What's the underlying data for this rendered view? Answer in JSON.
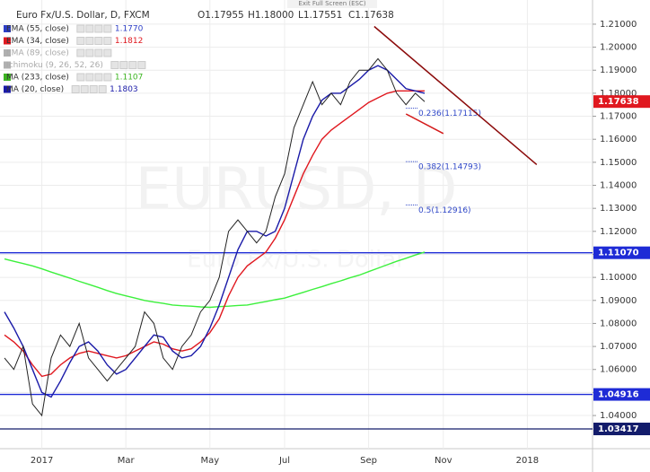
{
  "chart_data": {
    "type": "line",
    "title": "Euro Fx/U.S. Dollar, D, FXCM",
    "ohlc": [
      "O1.17955",
      "H1.18000",
      "L1.17551",
      "C1.17638"
    ],
    "exit_hint": "Exit Full Screen (ESC)",
    "watermark": "EURUSD, D",
    "watermark_sub": "Euro Fx/U.S. Dollar",
    "indicators": [
      {
        "name": "EMA (55, close)",
        "value": "1.1770",
        "color": "#2e3fc7"
      },
      {
        "name": "EMA (34, close)",
        "value": "1.1812",
        "color": "#e0181f"
      },
      {
        "name": "EMA (89, close)",
        "color": "#b0b0b0"
      },
      {
        "name": "Ichimoku (9, 26, 52, 26)",
        "color": "#b0b0b0"
      },
      {
        "name": "MA (233, close)",
        "value": "1.1107",
        "color": "#3cb521"
      },
      {
        "name": "MA (20, close)",
        "value": "1.1803",
        "color": "#1a1aa8"
      }
    ],
    "categories": [
      null,
      null,
      null,
      null,
      "2017",
      null,
      null,
      null,
      null,
      null,
      null,
      null,
      null,
      "Mar",
      null,
      null,
      null,
      null,
      null,
      null,
      null,
      null,
      "May",
      null,
      null,
      null,
      null,
      null,
      null,
      null,
      "Jul",
      null,
      null,
      null,
      null,
      null,
      null,
      null,
      null,
      "Sep",
      null,
      null,
      null,
      null,
      null,
      null,
      null,
      "Nov",
      null,
      null,
      null,
      null,
      null,
      null,
      null,
      null,
      "2018",
      null,
      null,
      null,
      null,
      null,
      null
    ],
    "series": [
      {
        "name": "MA (233, close)",
        "color": "#3cf03c",
        "values": [
          1.108,
          1.107,
          1.106,
          1.105,
          1.1037,
          1.1023,
          1.101,
          1.0997,
          1.0983,
          1.097,
          1.0957,
          1.0943,
          1.093,
          1.092,
          1.091,
          1.09,
          1.0893,
          1.0887,
          1.088,
          1.0877,
          1.0875,
          1.0872,
          1.087,
          1.0873,
          1.0875,
          1.0878,
          1.088,
          1.0888,
          1.0895,
          1.0903,
          1.091,
          1.0923,
          1.0935,
          1.0948,
          1.096,
          1.0973,
          1.0985,
          1.0998,
          1.101,
          1.1025,
          1.104,
          1.1055,
          1.107,
          1.1083,
          1.1097,
          1.111,
          null,
          null,
          null,
          null,
          null,
          null,
          null,
          null,
          null,
          null,
          null,
          null,
          null,
          null,
          null,
          null,
          null
        ]
      },
      {
        "name": "EMA (34, close)",
        "color": "#e0181f",
        "values": [
          1.075,
          1.072,
          1.068,
          1.062,
          1.057,
          1.058,
          1.062,
          1.065,
          1.067,
          1.068,
          1.067,
          1.066,
          1.065,
          1.066,
          1.068,
          1.07,
          1.072,
          1.071,
          1.069,
          1.068,
          1.069,
          1.072,
          1.076,
          1.082,
          1.092,
          1.1,
          1.105,
          1.108,
          1.111,
          1.117,
          1.125,
          1.135,
          1.145,
          1.153,
          1.16,
          1.164,
          1.167,
          1.17,
          1.173,
          1.176,
          1.178,
          1.18,
          1.181,
          1.181,
          1.181,
          1.181,
          null,
          null,
          null,
          null,
          null,
          null,
          null,
          null,
          null,
          null,
          null,
          null,
          null,
          null,
          null,
          null,
          null
        ]
      },
      {
        "name": "MA (20, close)",
        "color": "#1a1aa8",
        "values": [
          1.085,
          1.078,
          1.07,
          1.06,
          1.05,
          1.048,
          1.055,
          1.063,
          1.07,
          1.072,
          1.068,
          1.062,
          1.058,
          1.06,
          1.065,
          1.07,
          1.075,
          1.074,
          1.068,
          1.065,
          1.066,
          1.07,
          1.078,
          1.088,
          1.1,
          1.112,
          1.12,
          1.12,
          1.118,
          1.12,
          1.13,
          1.145,
          1.16,
          1.17,
          1.177,
          1.18,
          1.18,
          1.183,
          1.186,
          1.19,
          1.192,
          1.19,
          1.186,
          1.182,
          1.181,
          1.18,
          null,
          null,
          null,
          null,
          null,
          null,
          null,
          null,
          null,
          null,
          null,
          null,
          null,
          null,
          null,
          null,
          null
        ]
      },
      {
        "name": "Euro Fx/U.S. Dollar",
        "color": "#222222",
        "values": [
          1.065,
          1.06,
          1.07,
          1.045,
          1.04,
          1.065,
          1.075,
          1.07,
          1.08,
          1.065,
          1.06,
          1.055,
          1.06,
          1.065,
          1.07,
          1.085,
          1.08,
          1.065,
          1.06,
          1.07,
          1.075,
          1.085,
          1.09,
          1.1,
          1.12,
          1.125,
          1.12,
          1.115,
          1.12,
          1.135,
          1.145,
          1.165,
          1.175,
          1.185,
          1.175,
          1.18,
          1.175,
          1.185,
          1.19,
          1.19,
          1.195,
          1.19,
          1.18,
          1.175,
          1.18,
          1.17638,
          null,
          null,
          null,
          null,
          null,
          null,
          null,
          null,
          null,
          null,
          null,
          null,
          null,
          null,
          null,
          null,
          null
        ]
      }
    ],
    "ylim": [
      1.0256,
      1.2205
    ],
    "yticks": [
      {
        "value": 1.04,
        "label": "1.04000"
      },
      {
        "value": 1.05,
        "label": "1.05000"
      },
      {
        "value": 1.06,
        "label": "1.06000"
      },
      {
        "value": 1.07,
        "label": "1.07000"
      },
      {
        "value": 1.08,
        "label": "1.08000"
      },
      {
        "value": 1.09,
        "label": "1.09000"
      },
      {
        "value": 1.1,
        "label": "1.10000"
      },
      {
        "value": 1.11,
        "label": "1.11000"
      },
      {
        "value": 1.12,
        "label": "1.12000"
      },
      {
        "value": 1.13,
        "label": "1.13000"
      },
      {
        "value": 1.14,
        "label": "1.14000"
      },
      {
        "value": 1.15,
        "label": "1.15000"
      },
      {
        "value": 1.16,
        "label": "1.16000"
      },
      {
        "value": 1.17,
        "label": "1.17000"
      },
      {
        "value": 1.18,
        "label": "1.18000"
      },
      {
        "value": 1.19,
        "label": "1.19000"
      },
      {
        "value": 1.2,
        "label": "1.20000"
      },
      {
        "value": 1.21,
        "label": "1.21000"
      }
    ],
    "grid": true,
    "hlines": [
      {
        "value": 1.1107,
        "label": "1.11070",
        "color": "#1e2bd6"
      },
      {
        "value": 1.04916,
        "label": "1.04916",
        "color": "#1e2bd6"
      },
      {
        "value": 1.03417,
        "label": "1.03417",
        "color": "#131c6b"
      }
    ],
    "last_price": {
      "value": 1.17638,
      "label": "1.17638",
      "color": "#e0181f"
    },
    "fib_levels": [
      {
        "value": 1.17115,
        "label": "0.236(1.17115)"
      },
      {
        "value": 1.14793,
        "label": "0.382(1.14793)"
      },
      {
        "value": 1.12916,
        "label": "0.5(1.12916)"
      }
    ],
    "trendlines": [
      {
        "color": "#8b0a0a",
        "x": [
          39.6,
          57
        ],
        "y": [
          1.209,
          1.149
        ]
      },
      {
        "color": "#d41a1a",
        "x": [
          43,
          47
        ],
        "y": [
          1.171,
          1.1625
        ]
      }
    ]
  }
}
